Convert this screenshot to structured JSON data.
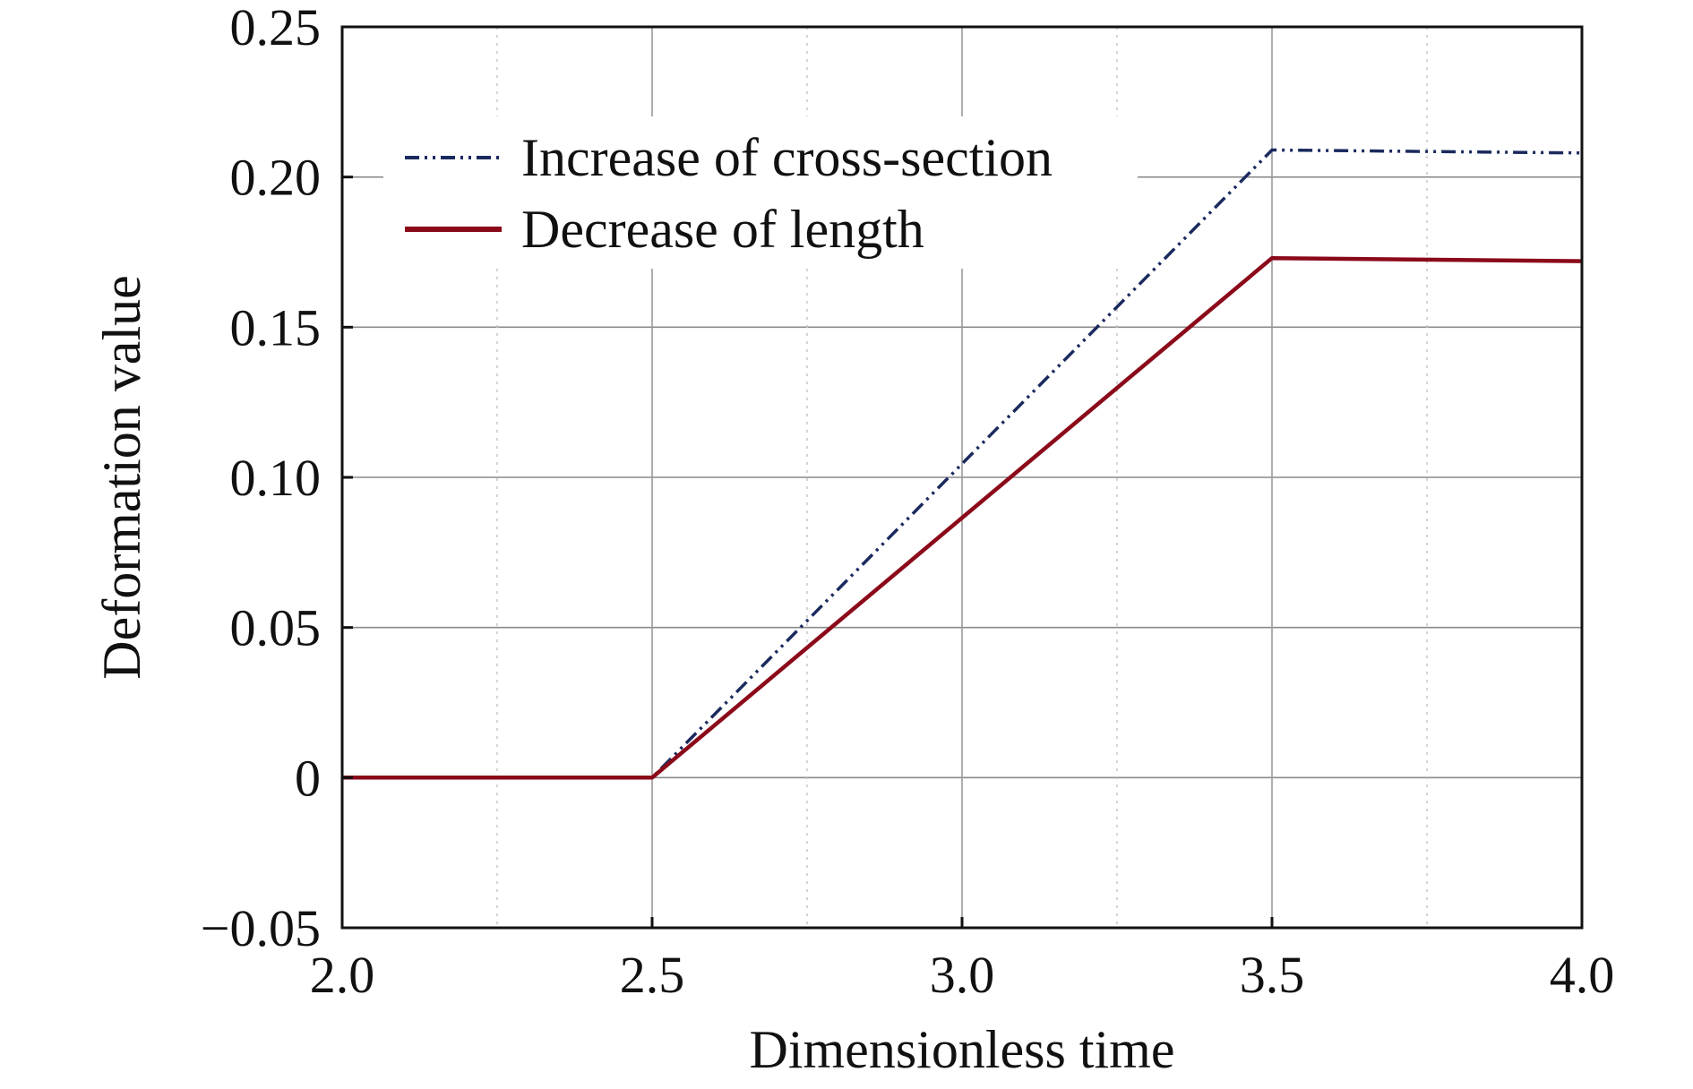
{
  "chart_data": {
    "type": "line",
    "title": "",
    "xlabel": "Dimensionless time",
    "ylabel": "Deformation value",
    "xlim": [
      2.0,
      4.0
    ],
    "ylim": [
      -0.05,
      0.25
    ],
    "x_ticks": [
      2.0,
      2.5,
      3.0,
      3.5,
      4.0
    ],
    "x_tick_labels": [
      "2.0",
      "2.5",
      "3.0",
      "3.5",
      "4.0"
    ],
    "y_ticks": [
      -0.05,
      0,
      0.05,
      0.1,
      0.15,
      0.2,
      0.25
    ],
    "y_tick_labels": [
      "−0.05",
      "0",
      "0.05",
      "0.10",
      "0.15",
      "0.20",
      "0.25"
    ],
    "grid": true,
    "legend_position": "top-left",
    "series": [
      {
        "name": "Increase of cross-section",
        "color": "#1a2a5e",
        "style": "dash-dot-dot",
        "x": [
          2.0,
          2.5,
          3.5,
          4.0
        ],
        "y": [
          0.0,
          0.0,
          0.209,
          0.208
        ]
      },
      {
        "name": "Decrease of length",
        "color": "#8b0a1a",
        "style": "solid",
        "x": [
          2.0,
          2.5,
          3.5,
          4.0
        ],
        "y": [
          0.0,
          0.0,
          0.173,
          0.172
        ]
      }
    ]
  }
}
